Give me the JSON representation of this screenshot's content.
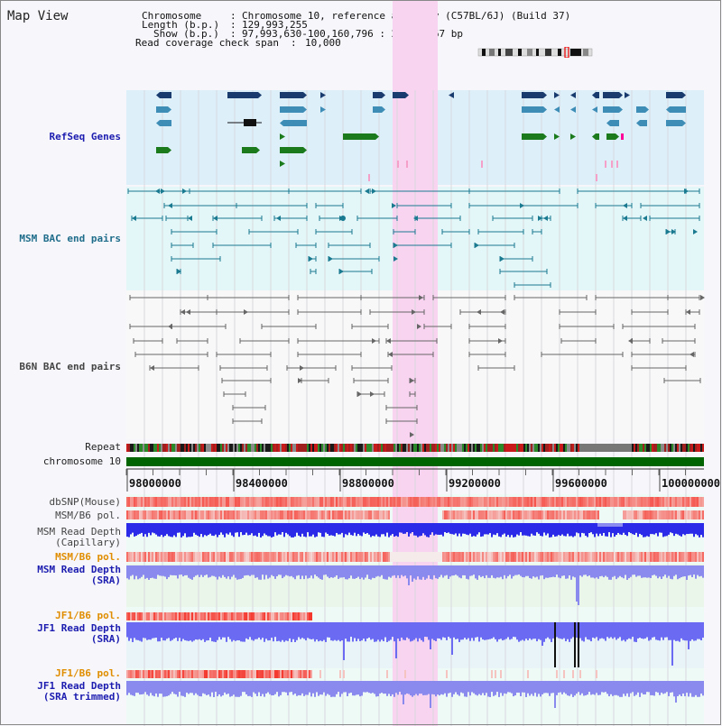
{
  "view_title": "Map View",
  "header": {
    "chromosome_label": "Chromosome",
    "chromosome_value": "Chromosome 10, reference assembly (C57BL/6J) (Build 37)",
    "length_label": "Length (b.p.)",
    "length_value": "129,993,255",
    "show_label": "Show (b.p.)",
    "show_value": "97,993,630-100,160,796 : 2,167,167 bp",
    "read_cov_label": "Read coverage check span",
    "read_cov_value": "10,000"
  },
  "tracks": {
    "refseq": "RefSeq Genes",
    "msm_bac": "MSM BAC end pairs",
    "b6n_bac": "B6N BAC end pairs",
    "repeat": "Repeat",
    "chromosome": "chromosome 10",
    "dbsnp": "dbSNP(Mouse)",
    "msm_b6_pol_1": "MSM/B6 pol.",
    "msm_depth_cap_1": "MSM Read Depth",
    "msm_depth_cap_2": "(Capillary)",
    "msm_b6_pol_2": "MSM/B6 pol.",
    "msm_depth_sra_1": "MSM Read Depth",
    "msm_depth_sra_2": "(SRA)",
    "jf1_b6_pol_1": "JF1/B6 pol.",
    "jf1_depth_sra_1": "JF1 Read Depth",
    "jf1_depth_sra_2": "(SRA)",
    "jf1_b6_pol_2": "JF1/B6 pol.",
    "jf1_depth_trim_1": "JF1 Read Depth",
    "jf1_depth_trim_2": "(SRA trimmed)"
  },
  "axis": {
    "ticks": [
      "98000000",
      "98400000",
      "98800000",
      "99200000",
      "99600000",
      "100000000"
    ]
  },
  "colors": {
    "refseq_bg": "#ddf0fa",
    "msm_bg": "#e4f7f8",
    "highlight": "#f8d4f0",
    "dark_gene": "#1a3b6e",
    "mid_gene": "#3d8db7",
    "green_gene": "#1b7a1b",
    "chrom_bar": "#006400",
    "depth_blue": "#3030e0",
    "label_blue": "#1c1cb0",
    "label_orange": "#e08e00",
    "label_teal": "#1f6d8a"
  }
}
